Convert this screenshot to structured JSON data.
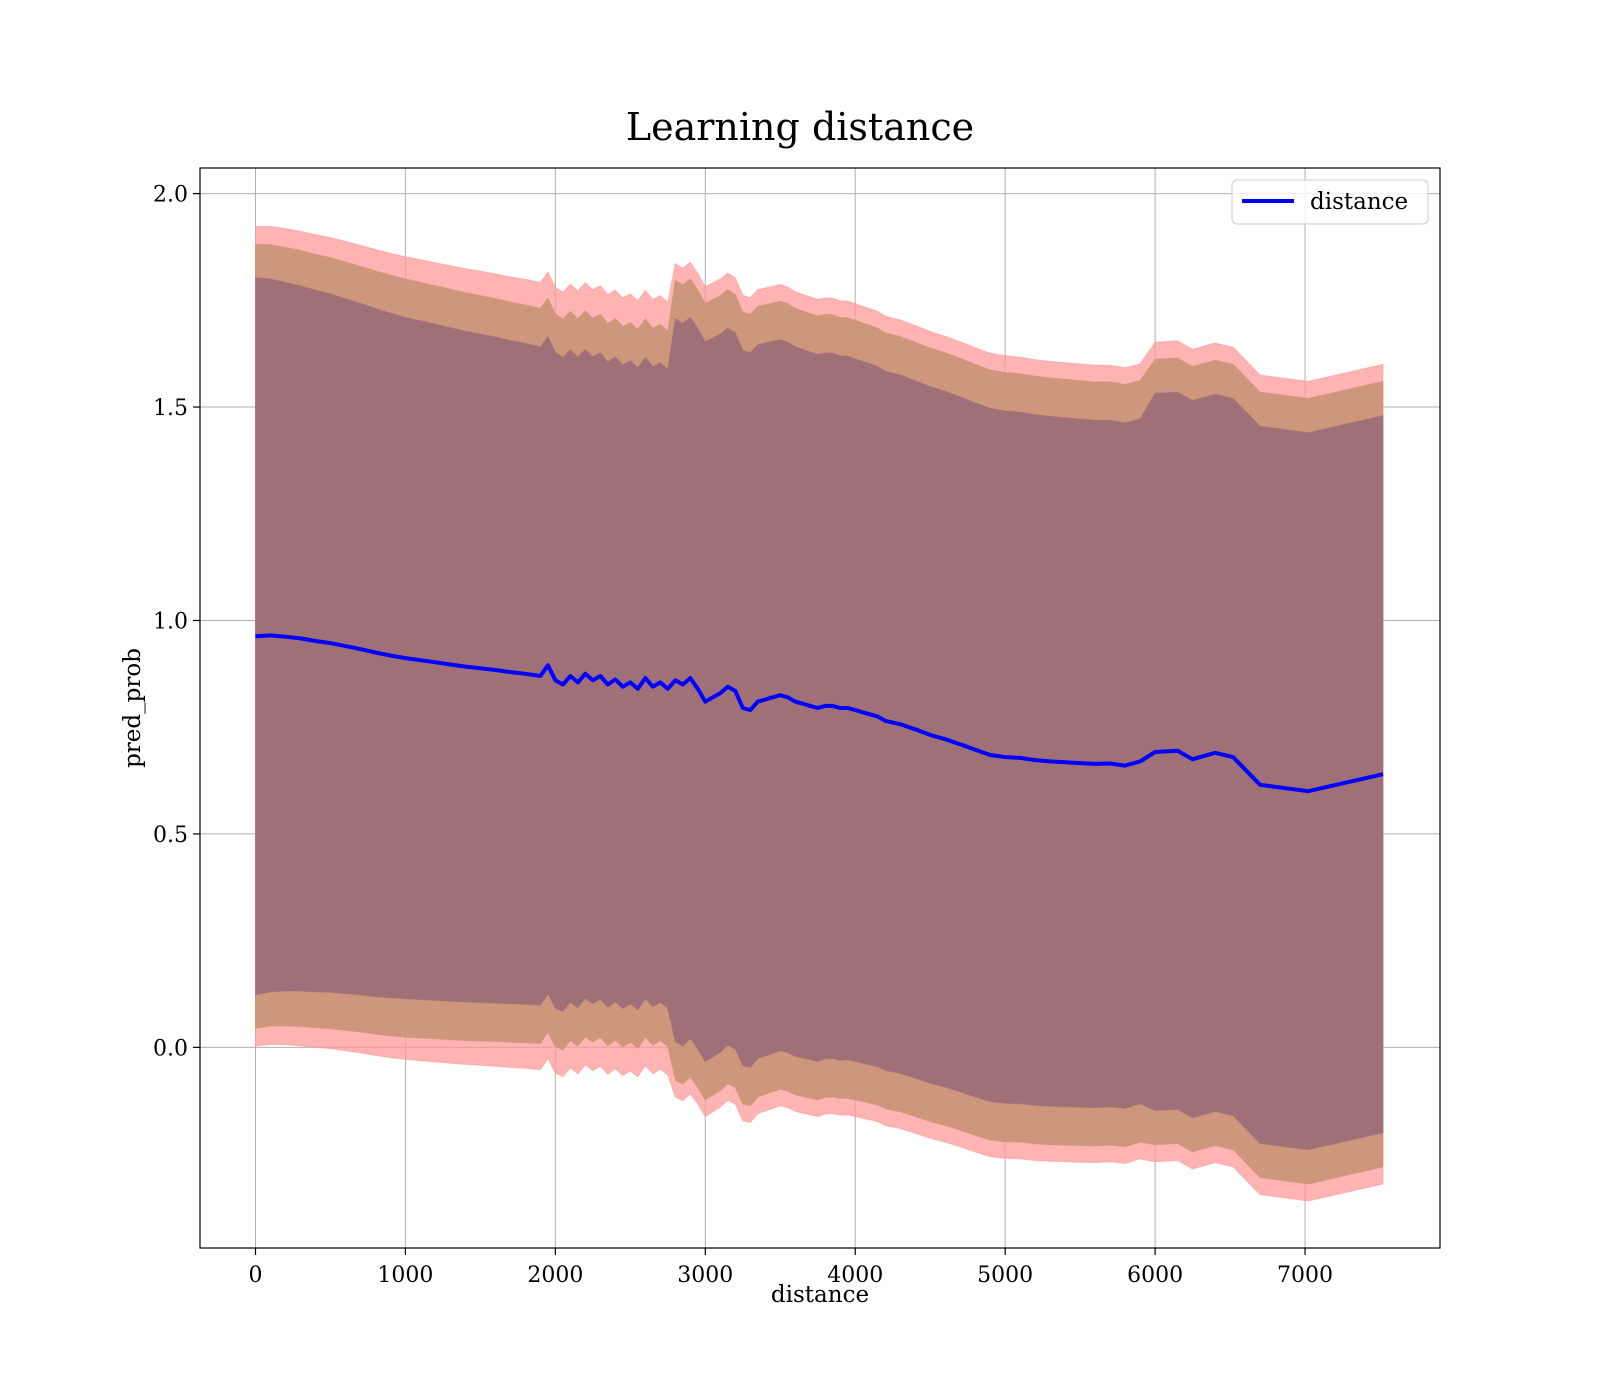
{
  "chart_data": {
    "type": "line",
    "title": "Learning distance",
    "xlabel": "distance",
    "ylabel": "pred_prob",
    "xlim": [
      -370,
      7900
    ],
    "ylim": [
      -0.47,
      2.06
    ],
    "x_ticks": [
      0,
      1000,
      2000,
      3000,
      4000,
      5000,
      6000,
      7000
    ],
    "y_ticks": [
      0.0,
      0.5,
      1.0,
      1.5,
      2.0
    ],
    "x_tick_labels": [
      "0",
      "1000",
      "2000",
      "3000",
      "4000",
      "5000",
      "6000",
      "7000"
    ],
    "y_tick_labels": [
      "0.0",
      "0.5",
      "1.0",
      "1.5",
      "2.0"
    ],
    "grid": true,
    "legend_position": "top-right",
    "colors": {
      "line": "#0000ff",
      "band_outer": "#ff9999",
      "band_middle": "#c99476",
      "band_inner": "#a07078",
      "grid": "#b0b0b0"
    },
    "series": [
      {
        "name": "distance",
        "x": [
          0,
          100,
          200,
          300,
          400,
          500,
          600,
          700,
          800,
          900,
          1000,
          1100,
          1200,
          1300,
          1400,
          1500,
          1600,
          1700,
          1800,
          1900,
          1950,
          2000,
          2050,
          2100,
          2150,
          2200,
          2250,
          2300,
          2350,
          2400,
          2450,
          2500,
          2550,
          2600,
          2650,
          2700,
          2750,
          2800,
          2850,
          2900,
          2950,
          3000,
          3050,
          3100,
          3150,
          3200,
          3250,
          3300,
          3350,
          3400,
          3450,
          3500,
          3550,
          3600,
          3650,
          3700,
          3750,
          3800,
          3850,
          3900,
          3950,
          4000,
          4050,
          4100,
          4150,
          4200,
          4300,
          4400,
          4500,
          4600,
          4700,
          4800,
          4900,
          5000,
          5100,
          5200,
          5300,
          5400,
          5500,
          5600,
          5700,
          5800,
          5900,
          6000,
          6150,
          6250,
          6400,
          6520,
          6700,
          7020,
          7520
        ],
        "values": [
          0.963,
          0.965,
          0.962,
          0.958,
          0.952,
          0.947,
          0.94,
          0.933,
          0.925,
          0.918,
          0.912,
          0.907,
          0.902,
          0.897,
          0.892,
          0.888,
          0.884,
          0.879,
          0.875,
          0.87,
          0.895,
          0.86,
          0.85,
          0.87,
          0.855,
          0.875,
          0.86,
          0.87,
          0.85,
          0.862,
          0.845,
          0.855,
          0.84,
          0.865,
          0.845,
          0.855,
          0.84,
          0.86,
          0.85,
          0.865,
          0.84,
          0.81,
          0.82,
          0.83,
          0.845,
          0.835,
          0.795,
          0.79,
          0.81,
          0.815,
          0.82,
          0.825,
          0.82,
          0.81,
          0.805,
          0.8,
          0.795,
          0.8,
          0.8,
          0.795,
          0.795,
          0.79,
          0.785,
          0.78,
          0.775,
          0.765,
          0.757,
          0.745,
          0.732,
          0.722,
          0.71,
          0.697,
          0.685,
          0.68,
          0.678,
          0.673,
          0.67,
          0.668,
          0.666,
          0.664,
          0.665,
          0.66,
          0.67,
          0.692,
          0.695,
          0.675,
          0.69,
          0.68,
          0.615,
          0.6,
          0.64
        ],
        "band_inner_halfwidth": [
          0.84,
          0.835,
          0.83,
          0.826,
          0.822,
          0.818,
          0.814,
          0.81,
          0.806,
          0.802,
          0.798,
          0.795,
          0.792,
          0.789,
          0.786,
          0.783,
          0.78,
          0.777,
          0.774,
          0.771,
          0.77,
          0.768,
          0.766,
          0.764,
          0.762,
          0.76,
          0.758,
          0.757,
          0.756,
          0.755,
          0.754,
          0.753,
          0.752,
          0.751,
          0.75,
          0.749,
          0.748,
          0.847,
          0.846,
          0.845,
          0.844,
          0.843,
          0.842,
          0.841,
          0.84,
          0.839,
          0.838,
          0.837,
          0.836,
          0.835,
          0.834,
          0.833,
          0.832,
          0.831,
          0.83,
          0.829,
          0.828,
          0.827,
          0.826,
          0.825,
          0.824,
          0.823,
          0.822,
          0.821,
          0.82,
          0.819,
          0.818,
          0.817,
          0.816,
          0.815,
          0.814,
          0.813,
          0.812,
          0.811,
          0.81,
          0.809,
          0.808,
          0.807,
          0.806,
          0.805,
          0.804,
          0.803,
          0.802,
          0.84,
          0.84,
          0.84,
          0.84,
          0.84,
          0.84,
          0.84,
          0.84
        ],
        "band_middle_halfwidth": [
          0.918,
          0.915,
          0.912,
          0.909,
          0.906,
          0.903,
          0.9,
          0.897,
          0.894,
          0.891,
          0.888,
          0.885,
          0.882,
          0.879,
          0.876,
          0.873,
          0.87,
          0.867,
          0.864,
          0.861,
          0.86,
          0.858,
          0.856,
          0.854,
          0.852,
          0.85,
          0.848,
          0.847,
          0.846,
          0.845,
          0.844,
          0.843,
          0.842,
          0.841,
          0.84,
          0.839,
          0.838,
          0.937,
          0.936,
          0.935,
          0.934,
          0.933,
          0.932,
          0.931,
          0.93,
          0.929,
          0.928,
          0.927,
          0.926,
          0.925,
          0.924,
          0.923,
          0.922,
          0.921,
          0.92,
          0.919,
          0.918,
          0.917,
          0.916,
          0.915,
          0.914,
          0.913,
          0.912,
          0.911,
          0.91,
          0.909,
          0.908,
          0.907,
          0.906,
          0.905,
          0.904,
          0.903,
          0.902,
          0.901,
          0.9,
          0.899,
          0.898,
          0.897,
          0.896,
          0.895,
          0.894,
          0.893,
          0.892,
          0.92,
          0.92,
          0.92,
          0.92,
          0.92,
          0.92,
          0.92,
          0.92
        ],
        "band_outer_halfwidth": [
          0.96,
          0.958,
          0.956,
          0.954,
          0.952,
          0.95,
          0.948,
          0.946,
          0.944,
          0.942,
          0.94,
          0.938,
          0.936,
          0.934,
          0.932,
          0.93,
          0.928,
          0.926,
          0.924,
          0.922,
          0.921,
          0.92,
          0.919,
          0.918,
          0.917,
          0.916,
          0.915,
          0.914,
          0.913,
          0.912,
          0.911,
          0.91,
          0.909,
          0.908,
          0.907,
          0.906,
          0.905,
          0.976,
          0.975,
          0.974,
          0.973,
          0.972,
          0.971,
          0.97,
          0.969,
          0.968,
          0.967,
          0.966,
          0.965,
          0.964,
          0.963,
          0.962,
          0.961,
          0.96,
          0.959,
          0.958,
          0.957,
          0.956,
          0.955,
          0.954,
          0.953,
          0.952,
          0.951,
          0.95,
          0.949,
          0.948,
          0.947,
          0.946,
          0.945,
          0.944,
          0.943,
          0.942,
          0.941,
          0.94,
          0.939,
          0.938,
          0.937,
          0.936,
          0.935,
          0.934,
          0.933,
          0.932,
          0.931,
          0.96,
          0.96,
          0.96,
          0.96,
          0.96,
          0.96,
          0.96,
          0.96
        ]
      }
    ]
  }
}
